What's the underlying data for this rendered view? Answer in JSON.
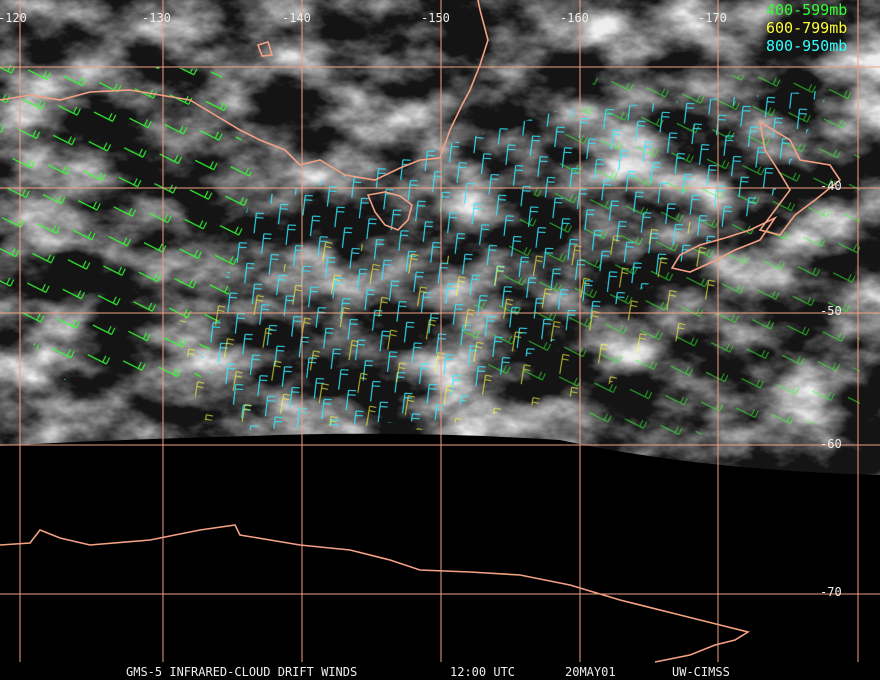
{
  "longitude_labels": [
    "-120",
    "-130",
    "-140",
    "-150",
    "-160",
    "-170"
  ],
  "latitude_labels": [
    "-40",
    "-50",
    "-60",
    "-70"
  ],
  "legend": [
    {
      "label": "400-599mb",
      "color": "#33ff33"
    },
    {
      "label": "600-799mb",
      "color": "#ffff33"
    },
    {
      "label": "800-950mb",
      "color": "#33ffff"
    }
  ],
  "footer": [
    "GMS-5 INFRARED-CLOUD DRIFT WINDS",
    "12:00 UTC",
    "20MAY01",
    "UW-CIMSS"
  ]
}
